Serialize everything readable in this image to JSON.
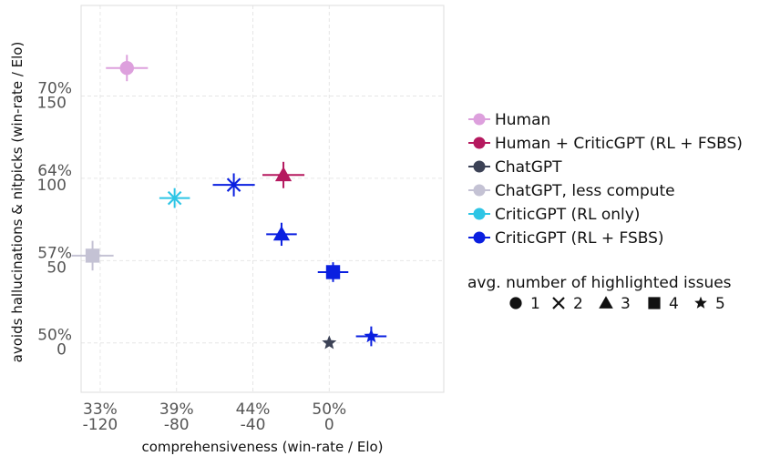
{
  "chart_data": {
    "type": "scatter",
    "title": "",
    "xlabel": "comprehensiveness (win-rate / Elo)",
    "ylabel": "avoids hallucinations & nitpicks (win-rate / Elo)",
    "x_unit": "Elo",
    "y_unit": "Elo",
    "xlim": [
      -130,
      60
    ],
    "ylim": [
      -30,
      205
    ],
    "grid": true,
    "legend_position": "right",
    "x_ticks": [
      {
        "value": -120,
        "label_top": "33%",
        "label_bottom": "-120"
      },
      {
        "value": -80,
        "label_top": "39%",
        "label_bottom": "-80"
      },
      {
        "value": -40,
        "label_top": "44%",
        "label_bottom": "-40"
      },
      {
        "value": 0,
        "label_top": "50%",
        "label_bottom": "0"
      }
    ],
    "y_ticks": [
      {
        "value": 150,
        "label_top": "70%",
        "label_bottom": "150"
      },
      {
        "value": 100,
        "label_top": "64%",
        "label_bottom": "100"
      },
      {
        "value": 50,
        "label_top": "57%",
        "label_bottom": "50"
      },
      {
        "value": 0,
        "label_top": "50%",
        "label_bottom": "0"
      }
    ],
    "series": [
      {
        "name": "Human",
        "color": "#dda0dd",
        "points": [
          {
            "x": -106,
            "y": 167,
            "marker": "circle",
            "xerr": 11,
            "yerr": 8
          }
        ]
      },
      {
        "name": "Human + CriticGPT (RL + FSBS)",
        "color": "#b5195f",
        "points": [
          {
            "x": -24,
            "y": 102,
            "marker": "triangle",
            "xerr": 11,
            "yerr": 8
          }
        ]
      },
      {
        "name": "ChatGPT",
        "color": "#3c4256",
        "points": [
          {
            "x": 0,
            "y": 0,
            "marker": "star",
            "xerr": 0,
            "yerr": 0
          }
        ]
      },
      {
        "name": "ChatGPT, less compute",
        "color": "#c4c2d4",
        "points": [
          {
            "x": -124,
            "y": 53,
            "marker": "square",
            "xerr": 11,
            "yerr": 9
          }
        ]
      },
      {
        "name": "CriticGPT (RL only)",
        "color": "#2ec5e5",
        "points": [
          {
            "x": -81,
            "y": 88,
            "marker": "x",
            "xerr": 8,
            "yerr": 6
          }
        ]
      },
      {
        "name": "CriticGPT (RL + FSBS)",
        "color": "#0a1fe0",
        "points": [
          {
            "x": -50,
            "y": 96,
            "marker": "x",
            "xerr": 11,
            "yerr": 7
          },
          {
            "x": -25,
            "y": 66,
            "marker": "triangle",
            "xerr": 8,
            "yerr": 7
          },
          {
            "x": 2,
            "y": 43,
            "marker": "square",
            "xerr": 8,
            "yerr": 6
          },
          {
            "x": 22,
            "y": 4,
            "marker": "star",
            "xerr": 8,
            "yerr": 6
          }
        ]
      }
    ],
    "marker_legend": {
      "title": "avg. number of highlighted issues",
      "items": [
        {
          "marker": "circle",
          "label": "1"
        },
        {
          "marker": "x",
          "label": "2"
        },
        {
          "marker": "triangle",
          "label": "3"
        },
        {
          "marker": "square",
          "label": "4"
        },
        {
          "marker": "star",
          "label": "5"
        }
      ]
    }
  }
}
